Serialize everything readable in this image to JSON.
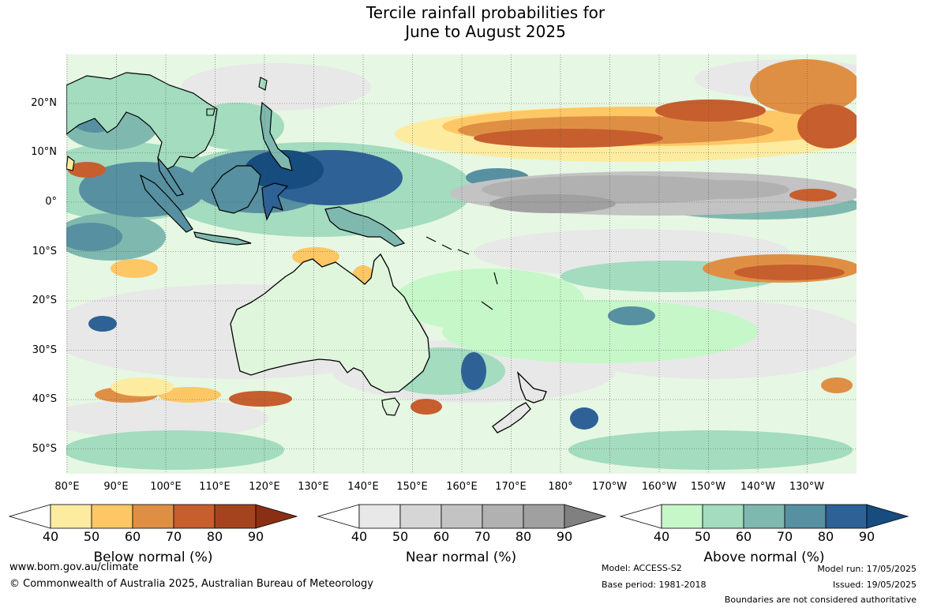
{
  "title_line1": "Tercile rainfall probabilities for",
  "title_line2": "June to August 2025",
  "lat_labels": [
    "20°N",
    "10°N",
    "0°",
    "10°S",
    "20°S",
    "30°S",
    "40°S",
    "50°S"
  ],
  "lon_labels": [
    "80°E",
    "90°E",
    "100°E",
    "110°E",
    "120°E",
    "130°E",
    "140°E",
    "150°E",
    "160°E",
    "170°E",
    "180°",
    "170°W",
    "160°W",
    "150°W",
    "140°W",
    "130°W"
  ],
  "legend": {
    "ticks": [
      "40",
      "50",
      "60",
      "70",
      "80",
      "90"
    ],
    "below": {
      "title": "Below normal (%)",
      "colors": [
        "#fdeca0",
        "#fdc765",
        "#df8f44",
        "#c75e2e",
        "#a6431f",
        "#8b2f14"
      ]
    },
    "near": {
      "title": "Near normal (%)",
      "colors": [
        "#e8e8e8",
        "#d6d6d6",
        "#c3c3c3",
        "#b1b1b1",
        "#a0a0a0",
        "#808080"
      ]
    },
    "above": {
      "title": "Above normal (%)",
      "colors": [
        "#c6f7c9",
        "#a3dcbf",
        "#7fb8ae",
        "#5790a0",
        "#2e6195",
        "#164c7e"
      ]
    }
  },
  "footer": {
    "website": "www.bom.gov.au/climate",
    "copyright": "© Commonwealth of Australia 2025, Australian Bureau of Meteorology",
    "model": "Model: ACCESS-S2",
    "base_period": "Base period: 1981-2018",
    "model_run": "Model run: 17/05/2025",
    "issued": "Issued: 19/05/2025",
    "disclaimer": "Boundaries are not considered authoritative"
  }
}
